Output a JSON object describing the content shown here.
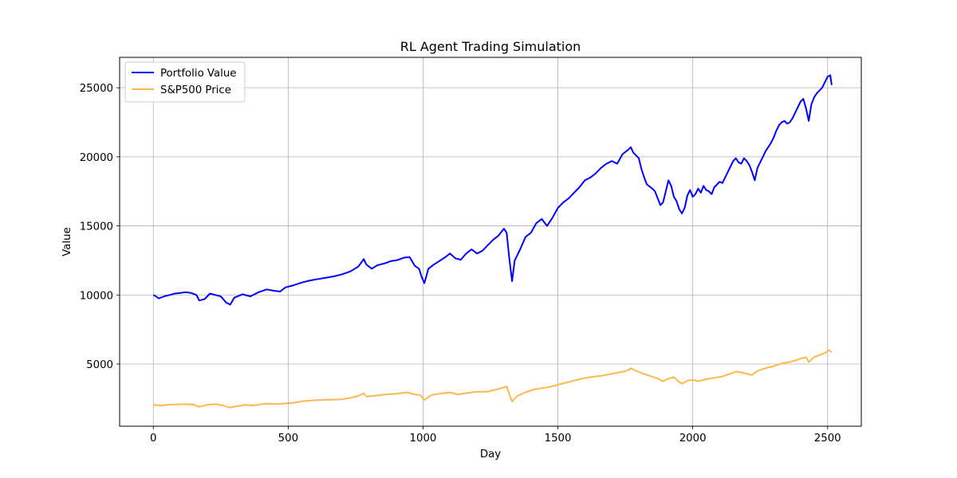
{
  "chart_data": {
    "type": "line",
    "title": "RL Agent Trading Simulation",
    "xlabel": "Day",
    "ylabel": "Value",
    "xlim": [
      -125,
      2625
    ],
    "ylim": [
      500,
      27200
    ],
    "xticks": [
      0,
      500,
      1000,
      1500,
      2000,
      2500
    ],
    "yticks": [
      5000,
      10000,
      15000,
      20000,
      25000
    ],
    "grid": true,
    "legend_position": "top-left",
    "series": [
      {
        "name": "Portfolio Value",
        "color": "#0000ff",
        "points": [
          [
            0,
            10000
          ],
          [
            10,
            9900
          ],
          [
            20,
            9750
          ],
          [
            40,
            9900
          ],
          [
            60,
            10000
          ],
          [
            80,
            10100
          ],
          [
            100,
            10150
          ],
          [
            120,
            10200
          ],
          [
            140,
            10150
          ],
          [
            160,
            10000
          ],
          [
            170,
            9600
          ],
          [
            190,
            9700
          ],
          [
            210,
            10100
          ],
          [
            230,
            10000
          ],
          [
            250,
            9900
          ],
          [
            270,
            9450
          ],
          [
            285,
            9300
          ],
          [
            300,
            9800
          ],
          [
            330,
            10050
          ],
          [
            360,
            9900
          ],
          [
            390,
            10200
          ],
          [
            420,
            10400
          ],
          [
            450,
            10300
          ],
          [
            470,
            10250
          ],
          [
            490,
            10550
          ],
          [
            520,
            10700
          ],
          [
            550,
            10900
          ],
          [
            580,
            11050
          ],
          [
            610,
            11150
          ],
          [
            640,
            11250
          ],
          [
            670,
            11350
          ],
          [
            700,
            11500
          ],
          [
            730,
            11700
          ],
          [
            760,
            12050
          ],
          [
            780,
            12600
          ],
          [
            790,
            12200
          ],
          [
            810,
            11900
          ],
          [
            830,
            12150
          ],
          [
            860,
            12300
          ],
          [
            880,
            12450
          ],
          [
            900,
            12500
          ],
          [
            930,
            12700
          ],
          [
            950,
            12750
          ],
          [
            970,
            12100
          ],
          [
            985,
            11900
          ],
          [
            995,
            11300
          ],
          [
            1005,
            10850
          ],
          [
            1020,
            11900
          ],
          [
            1040,
            12200
          ],
          [
            1060,
            12450
          ],
          [
            1080,
            12700
          ],
          [
            1100,
            13000
          ],
          [
            1120,
            12650
          ],
          [
            1140,
            12550
          ],
          [
            1160,
            13000
          ],
          [
            1180,
            13300
          ],
          [
            1200,
            13000
          ],
          [
            1220,
            13200
          ],
          [
            1240,
            13600
          ],
          [
            1260,
            14000
          ],
          [
            1280,
            14300
          ],
          [
            1300,
            14800
          ],
          [
            1310,
            14500
          ],
          [
            1320,
            12600
          ],
          [
            1330,
            11000
          ],
          [
            1340,
            12500
          ],
          [
            1360,
            13300
          ],
          [
            1380,
            14200
          ],
          [
            1400,
            14500
          ],
          [
            1420,
            15200
          ],
          [
            1440,
            15500
          ],
          [
            1460,
            15000
          ],
          [
            1480,
            15600
          ],
          [
            1500,
            16300
          ],
          [
            1520,
            16700
          ],
          [
            1540,
            17000
          ],
          [
            1560,
            17400
          ],
          [
            1580,
            17800
          ],
          [
            1600,
            18300
          ],
          [
            1620,
            18500
          ],
          [
            1640,
            18800
          ],
          [
            1660,
            19200
          ],
          [
            1680,
            19500
          ],
          [
            1700,
            19700
          ],
          [
            1720,
            19500
          ],
          [
            1740,
            20200
          ],
          [
            1760,
            20500
          ],
          [
            1770,
            20700
          ],
          [
            1780,
            20300
          ],
          [
            1800,
            19900
          ],
          [
            1810,
            19100
          ],
          [
            1820,
            18500
          ],
          [
            1830,
            18000
          ],
          [
            1850,
            17700
          ],
          [
            1860,
            17500
          ],
          [
            1870,
            17000
          ],
          [
            1880,
            16500
          ],
          [
            1890,
            16700
          ],
          [
            1900,
            17500
          ],
          [
            1910,
            18300
          ],
          [
            1920,
            17900
          ],
          [
            1930,
            17100
          ],
          [
            1940,
            16800
          ],
          [
            1950,
            16200
          ],
          [
            1960,
            15900
          ],
          [
            1970,
            16300
          ],
          [
            1980,
            17200
          ],
          [
            1990,
            17600
          ],
          [
            2000,
            17100
          ],
          [
            2010,
            17300
          ],
          [
            2020,
            17700
          ],
          [
            2030,
            17400
          ],
          [
            2040,
            17900
          ],
          [
            2050,
            17600
          ],
          [
            2060,
            17500
          ],
          [
            2070,
            17300
          ],
          [
            2080,
            17800
          ],
          [
            2090,
            18000
          ],
          [
            2100,
            18200
          ],
          [
            2110,
            18100
          ],
          [
            2120,
            18500
          ],
          [
            2130,
            18900
          ],
          [
            2140,
            19300
          ],
          [
            2150,
            19700
          ],
          [
            2160,
            19900
          ],
          [
            2170,
            19600
          ],
          [
            2180,
            19500
          ],
          [
            2190,
            19900
          ],
          [
            2200,
            19700
          ],
          [
            2210,
            19400
          ],
          [
            2220,
            18900
          ],
          [
            2230,
            18300
          ],
          [
            2240,
            19200
          ],
          [
            2250,
            19600
          ],
          [
            2260,
            20000
          ],
          [
            2270,
            20400
          ],
          [
            2280,
            20700
          ],
          [
            2290,
            21000
          ],
          [
            2300,
            21400
          ],
          [
            2310,
            21900
          ],
          [
            2320,
            22300
          ],
          [
            2330,
            22500
          ],
          [
            2340,
            22600
          ],
          [
            2350,
            22400
          ],
          [
            2360,
            22500
          ],
          [
            2370,
            22800
          ],
          [
            2380,
            23200
          ],
          [
            2390,
            23600
          ],
          [
            2400,
            24000
          ],
          [
            2410,
            24200
          ],
          [
            2420,
            23500
          ],
          [
            2430,
            22600
          ],
          [
            2440,
            23800
          ],
          [
            2450,
            24300
          ],
          [
            2460,
            24600
          ],
          [
            2470,
            24800
          ],
          [
            2480,
            25000
          ],
          [
            2490,
            25400
          ],
          [
            2500,
            25800
          ],
          [
            2510,
            25900
          ],
          [
            2515,
            25200
          ]
        ]
      },
      {
        "name": "S&P500 Price",
        "color": "#ffb84d",
        "points": [
          [
            0,
            2050
          ],
          [
            30,
            2000
          ],
          [
            60,
            2060
          ],
          [
            90,
            2080
          ],
          [
            120,
            2090
          ],
          [
            150,
            2060
          ],
          [
            170,
            1900
          ],
          [
            200,
            2050
          ],
          [
            230,
            2100
          ],
          [
            260,
            2000
          ],
          [
            280,
            1850
          ],
          [
            310,
            1950
          ],
          [
            340,
            2050
          ],
          [
            370,
            2000
          ],
          [
            400,
            2100
          ],
          [
            430,
            2130
          ],
          [
            460,
            2100
          ],
          [
            490,
            2150
          ],
          [
            520,
            2200
          ],
          [
            560,
            2320
          ],
          [
            600,
            2380
          ],
          [
            650,
            2420
          ],
          [
            700,
            2450
          ],
          [
            730,
            2550
          ],
          [
            760,
            2700
          ],
          [
            780,
            2880
          ],
          [
            790,
            2650
          ],
          [
            820,
            2700
          ],
          [
            860,
            2800
          ],
          [
            900,
            2850
          ],
          [
            940,
            2950
          ],
          [
            970,
            2800
          ],
          [
            990,
            2750
          ],
          [
            1005,
            2400
          ],
          [
            1030,
            2750
          ],
          [
            1060,
            2850
          ],
          [
            1100,
            2950
          ],
          [
            1130,
            2800
          ],
          [
            1160,
            2900
          ],
          [
            1200,
            3000
          ],
          [
            1240,
            3000
          ],
          [
            1270,
            3150
          ],
          [
            1300,
            3300
          ],
          [
            1310,
            3380
          ],
          [
            1320,
            2800
          ],
          [
            1330,
            2280
          ],
          [
            1350,
            2700
          ],
          [
            1380,
            2950
          ],
          [
            1410,
            3150
          ],
          [
            1440,
            3250
          ],
          [
            1470,
            3350
          ],
          [
            1500,
            3500
          ],
          [
            1530,
            3650
          ],
          [
            1560,
            3800
          ],
          [
            1590,
            3950
          ],
          [
            1620,
            4050
          ],
          [
            1660,
            4150
          ],
          [
            1700,
            4300
          ],
          [
            1730,
            4400
          ],
          [
            1760,
            4550
          ],
          [
            1770,
            4700
          ],
          [
            1790,
            4500
          ],
          [
            1810,
            4350
          ],
          [
            1840,
            4150
          ],
          [
            1870,
            3950
          ],
          [
            1890,
            3750
          ],
          [
            1910,
            3950
          ],
          [
            1930,
            4050
          ],
          [
            1950,
            3700
          ],
          [
            1960,
            3580
          ],
          [
            1980,
            3800
          ],
          [
            2000,
            3850
          ],
          [
            2020,
            3750
          ],
          [
            2050,
            3900
          ],
          [
            2080,
            4000
          ],
          [
            2110,
            4100
          ],
          [
            2140,
            4300
          ],
          [
            2160,
            4450
          ],
          [
            2180,
            4400
          ],
          [
            2200,
            4300
          ],
          [
            2220,
            4200
          ],
          [
            2240,
            4500
          ],
          [
            2270,
            4700
          ],
          [
            2300,
            4850
          ],
          [
            2330,
            5050
          ],
          [
            2360,
            5150
          ],
          [
            2380,
            5250
          ],
          [
            2400,
            5400
          ],
          [
            2420,
            5500
          ],
          [
            2430,
            5150
          ],
          [
            2450,
            5500
          ],
          [
            2470,
            5650
          ],
          [
            2490,
            5800
          ],
          [
            2505,
            6000
          ],
          [
            2515,
            5850
          ]
        ]
      }
    ]
  }
}
